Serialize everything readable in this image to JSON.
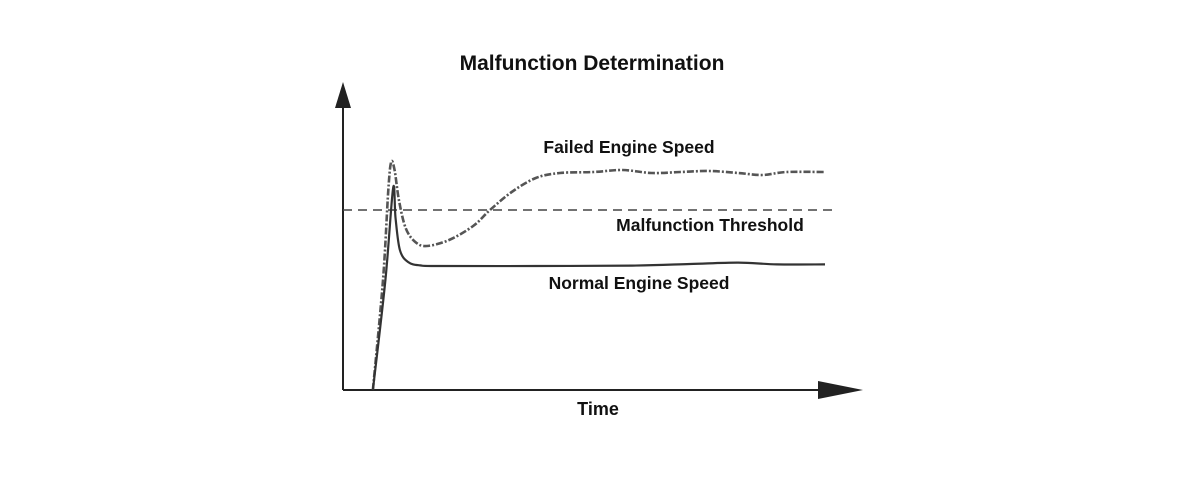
{
  "chart_data": {
    "type": "line",
    "title": "Malfunction Determination",
    "xlabel": "Time",
    "ylabel": "",
    "xlim": [
      0,
      108
    ],
    "ylim": [
      0,
      150
    ],
    "grid": false,
    "threshold": {
      "name": "Malfunction Threshold",
      "value": 90
    },
    "series": [
      {
        "name": "Failed Engine Speed",
        "style": "dash-dot",
        "points": [
          [
            6.2,
            0
          ],
          [
            8.3,
            55
          ],
          [
            9.4,
            100
          ],
          [
            10,
            114
          ],
          [
            10.7,
            110
          ],
          [
            11.6,
            95
          ],
          [
            13,
            81
          ],
          [
            15,
            74
          ],
          [
            17.4,
            72
          ],
          [
            22,
            75
          ],
          [
            27,
            82
          ],
          [
            30.5,
            90
          ],
          [
            35,
            99
          ],
          [
            40,
            106
          ],
          [
            45,
            108.5
          ],
          [
            52,
            109
          ],
          [
            58,
            110
          ],
          [
            64,
            108.5
          ],
          [
            70,
            109
          ],
          [
            76,
            109.5
          ],
          [
            82,
            108.5
          ],
          [
            87,
            107.5
          ],
          [
            92,
            109
          ],
          [
            100,
            109
          ]
        ]
      },
      {
        "name": "Normal Engine Speed",
        "style": "solid",
        "points": [
          [
            6.2,
            0
          ],
          [
            8.8,
            55
          ],
          [
            10.4,
            101
          ],
          [
            10.9,
            86
          ],
          [
            11.8,
            70
          ],
          [
            13.5,
            64
          ],
          [
            16,
            62.3
          ],
          [
            20,
            62
          ],
          [
            40,
            62
          ],
          [
            60,
            62.2
          ],
          [
            72,
            63
          ],
          [
            82,
            63.7
          ],
          [
            90,
            62.8
          ],
          [
            100,
            62.8
          ]
        ]
      }
    ],
    "colors": {
      "line": "#333333",
      "axis": "#222222"
    }
  }
}
